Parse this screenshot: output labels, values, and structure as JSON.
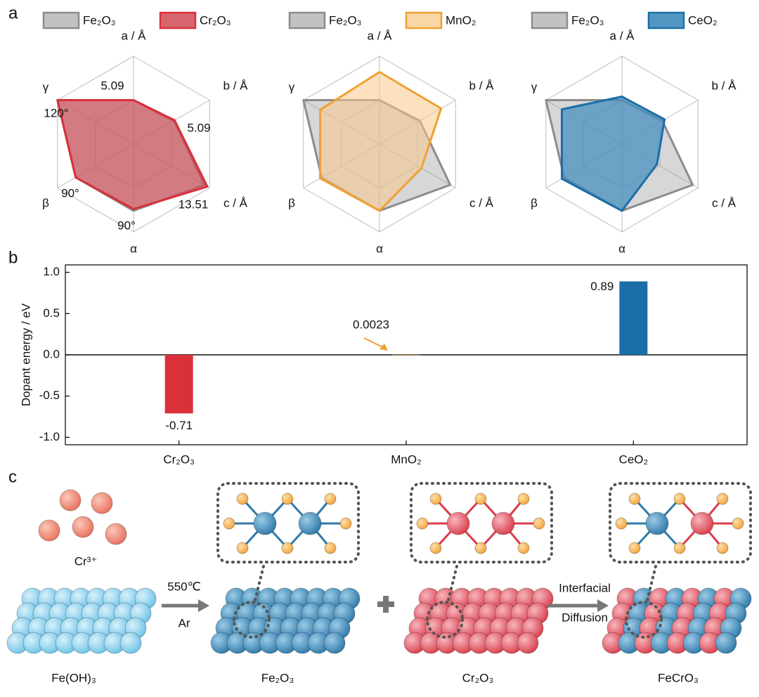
{
  "panel_labels": [
    "a",
    "b",
    "c"
  ],
  "chart_data": [
    {
      "type": "radar",
      "axes": [
        "a / Å",
        "b / Å",
        "c / Å",
        "α",
        "β",
        "γ"
      ],
      "rlim": [
        0,
        1
      ],
      "rticks": [
        0.5,
        1
      ],
      "series": [
        {
          "name": "Fe₂O₃",
          "color": "#8c8c8c",
          "values": [
            0.5,
            0.53,
            0.93,
            0.76,
            0.76,
            1.0
          ]
        },
        {
          "name": "Cr₂O₃",
          "color": "#d9303a",
          "values": [
            0.5,
            0.54,
            0.97,
            0.74,
            0.76,
            1.0
          ]
        }
      ],
      "annotations": [
        "5.09",
        "5.09",
        "13.51",
        "90°",
        "90°",
        "120°"
      ]
    },
    {
      "type": "radar",
      "axes": [
        "a / Å",
        "b / Å",
        "c / Å",
        "α",
        "β",
        "γ"
      ],
      "rlim": [
        0,
        1
      ],
      "rticks": [
        0.5,
        1
      ],
      "series": [
        {
          "name": "Fe₂O₃",
          "color": "#8c8c8c",
          "values": [
            0.5,
            0.53,
            0.93,
            0.76,
            0.76,
            1.0
          ]
        },
        {
          "name": "MnO₂",
          "color": "#f0a030",
          "values": [
            0.82,
            0.81,
            0.55,
            0.76,
            0.78,
            0.78
          ]
        }
      ]
    },
    {
      "type": "radar",
      "axes": [
        "a / Å",
        "b / Å",
        "c / Å",
        "α",
        "β",
        "γ"
      ],
      "rlim": [
        0,
        1
      ],
      "rticks": [
        0.5,
        1
      ],
      "series": [
        {
          "name": "Fe₂O₃",
          "color": "#8c8c8c",
          "values": [
            0.5,
            0.53,
            0.93,
            0.76,
            0.76,
            1.0
          ]
        },
        {
          "name": "CeO₂",
          "color": "#1a6fa8",
          "values": [
            0.54,
            0.56,
            0.46,
            0.76,
            0.79,
            0.79
          ]
        }
      ]
    },
    {
      "type": "bar",
      "ylabel": "Dopant energy / eV",
      "categories": [
        "Cr₂O₃",
        "MnO₂",
        "CeO₂"
      ],
      "values": [
        -0.71,
        0.0023,
        0.89
      ],
      "colors": [
        "#d9303a",
        "#f0a030",
        "#1a6fa8"
      ],
      "ylim": [
        -1.09,
        1.09
      ],
      "yticks": [
        {
          "value": -1,
          "label": "-1.0"
        },
        -0.5,
        {
          "value": 0,
          "label": "0.0"
        },
        0.5,
        {
          "value": 1,
          "label": "1.0"
        }
      ]
    }
  ],
  "schematic": {
    "ion": "Cr³⁺",
    "step1_top": "550℃",
    "step1_bottom": "Ar",
    "step2_top": "Interfacial",
    "step2_bottom": "Diffusion",
    "materials": [
      "Fe(OH)₃",
      "Fe₂O₃",
      "Cr₂O₃",
      "FeCrO₃"
    ]
  }
}
